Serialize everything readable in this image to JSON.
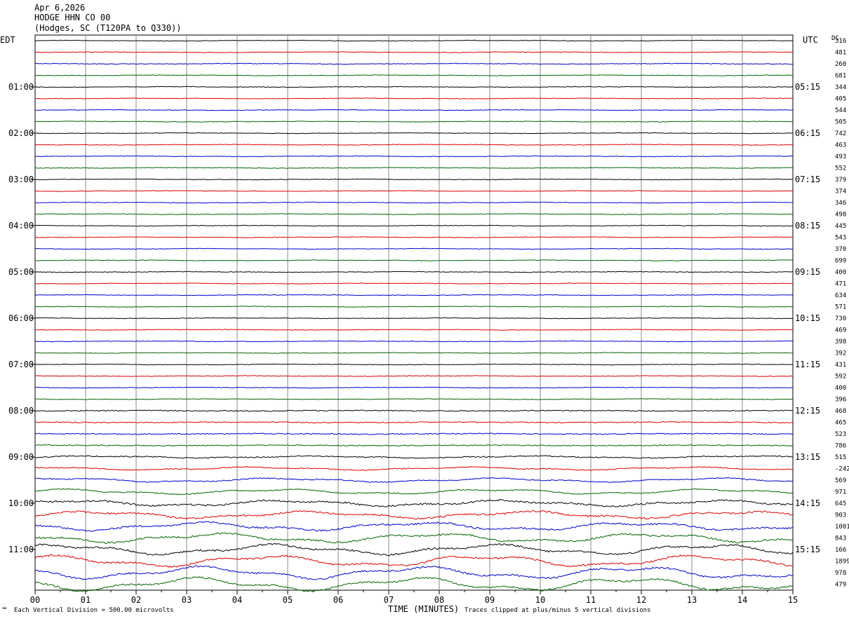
{
  "header": {
    "date": "Apr 6,2026",
    "station": "HODGE HHN CO 00",
    "location": "(Hodges, SC (T120PA to Q330))"
  },
  "chart_data": {
    "type": "line",
    "title": "Apr 6,2026 HODGE HHN CO 00 (Hodges, SC (T120PA to Q330))",
    "left_axis_label": "EDT",
    "right_axis_label": "UTC",
    "dc_label": "DC",
    "xlabel": "TIME (MINUTES)",
    "xlim": [
      0,
      15
    ],
    "x_ticks": [
      "00",
      "01",
      "02",
      "03",
      "04",
      "05",
      "06",
      "07",
      "08",
      "09",
      "10",
      "11",
      "12",
      "13",
      "14",
      "15"
    ],
    "trace_colors": [
      "#000000",
      "#dd0000",
      "#0000cc",
      "#006600"
    ],
    "traces_per_hour": 4,
    "edt_labels": [
      "01:00",
      "02:00",
      "03:00",
      "04:00",
      "05:00",
      "06:00",
      "07:00",
      "08:00",
      "09:00",
      "10:00",
      "11:00"
    ],
    "utc_labels": [
      "05:15",
      "06:15",
      "07:15",
      "08:15",
      "09:15",
      "10:15",
      "11:15",
      "12:15",
      "13:15",
      "14:15",
      "15:15"
    ],
    "hour_label_rows": [
      4,
      8,
      12,
      16,
      20,
      24,
      28,
      32,
      36,
      40,
      44
    ],
    "dc_offsets": [
      316,
      481,
      260,
      681,
      344,
      405,
      544,
      505,
      742,
      463,
      493,
      552,
      379,
      374,
      346,
      498,
      445,
      543,
      370,
      699,
      400,
      471,
      634,
      571,
      730,
      469,
      398,
      392,
      431,
      592,
      400,
      396,
      468,
      465,
      523,
      786,
      515,
      -242,
      569,
      971,
      645,
      903,
      1001,
      843,
      166,
      1899,
      978,
      479
    ],
    "traces_clipped_at_vertical_divisions": 5
  },
  "footer": {
    "scale_text": "Each Vertical Division =  500.00 microvolts",
    "clip_text": "Traces clipped at plus/minus 5 vertical divisions",
    "logo_mark": "℠"
  }
}
